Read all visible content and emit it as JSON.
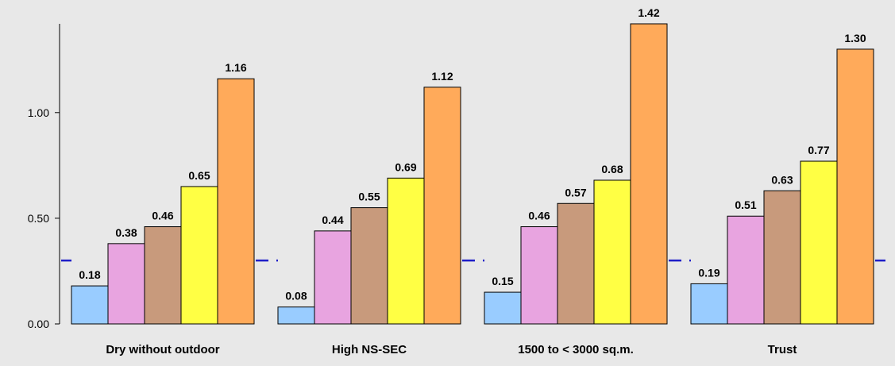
{
  "chart_data": {
    "type": "bar",
    "categories": [
      "Dry without outdoor",
      "High NS-SEC",
      "1500 to < 3000 sq.m.",
      "Trust"
    ],
    "series": [
      {
        "values": [
          0.18,
          0.08,
          0.15,
          0.19
        ],
        "color": "#99ccff"
      },
      {
        "values": [
          0.38,
          0.44,
          0.46,
          0.51
        ],
        "color": "#e8a4e0"
      },
      {
        "values": [
          0.46,
          0.55,
          0.57,
          0.63
        ],
        "color": "#c89a7c"
      },
      {
        "values": [
          0.65,
          0.69,
          0.68,
          0.77
        ],
        "color": "#ffff44"
      },
      {
        "values": [
          1.16,
          1.12,
          1.42,
          1.3
        ],
        "color": "#ffaa5a"
      }
    ],
    "value_labels": [
      [
        "0.18",
        "0.08",
        "0.15",
        "0.19"
      ],
      [
        "0.38",
        "0.44",
        "0.46",
        "0.51"
      ],
      [
        "0.46",
        "0.55",
        "0.57",
        "0.63"
      ],
      [
        "0.65",
        "0.69",
        "0.68",
        "0.77"
      ],
      [
        "1.16",
        "1.12",
        "1.42",
        "1.30"
      ]
    ],
    "yticks": [
      0.0,
      0.5,
      1.0
    ],
    "ytick_labels": [
      "0.00",
      "0.50",
      "1.00"
    ],
    "ylim": [
      0,
      1.42
    ],
    "reference_line": 0.3,
    "reference_line_color": "#1e1ec8",
    "background_color": "#e8e8e8",
    "grid": false,
    "legend": "none"
  }
}
